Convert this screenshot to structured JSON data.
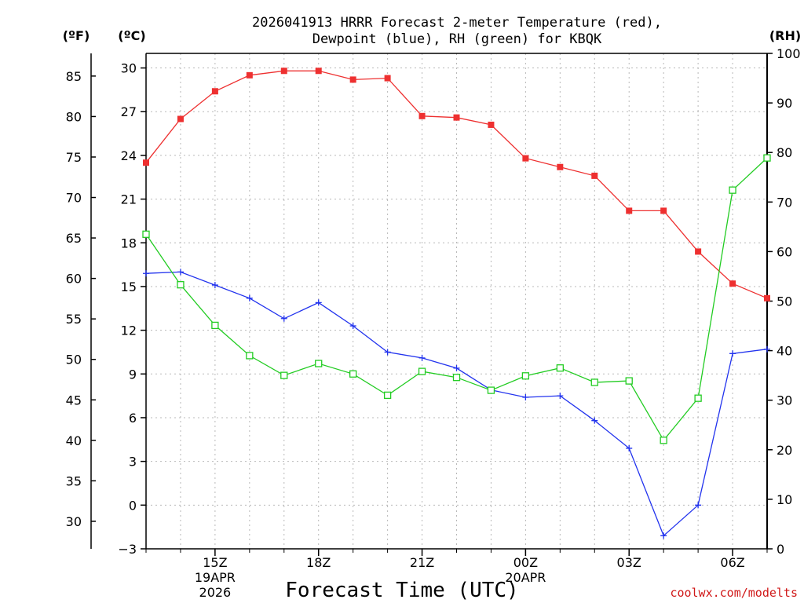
{
  "chart_data": {
    "type": "line",
    "title_line1": "2026041913 HRRR Forecast 2-meter Temperature (red),",
    "title_line2": "Dewpoint (blue), RH (green) for KBQK",
    "xlabel": "Forecast Time (UTC)",
    "credit": "coolwx.com/modelts",
    "axis_units": {
      "fahrenheit": "(ºF)",
      "celsius": "(ºC)",
      "rh": "(RH)"
    },
    "x_hours": [
      13,
      14,
      15,
      16,
      17,
      18,
      19,
      20,
      21,
      22,
      23,
      24,
      25,
      26,
      27,
      28,
      29,
      30,
      31
    ],
    "xlim": [
      13,
      31
    ],
    "celsius_ylim": [
      -3,
      31
    ],
    "fahrenheit_ylim": [
      26.6,
      87.8
    ],
    "rh_ylim": [
      0,
      100
    ],
    "x_ticks": [
      {
        "hour": 15,
        "label": "15Z",
        "date": "19APR",
        "year": "2026"
      },
      {
        "hour": 18,
        "label": "18Z"
      },
      {
        "hour": 21,
        "label": "21Z"
      },
      {
        "hour": 24,
        "label": "00Z",
        "date": "20APR"
      },
      {
        "hour": 27,
        "label": "03Z"
      },
      {
        "hour": 30,
        "label": "06Z"
      }
    ],
    "celsius_ticks": [
      "30",
      "27",
      "24",
      "21",
      "18",
      "15",
      "12",
      "9",
      "6",
      "3",
      "0",
      "−3"
    ],
    "fahrenheit_ticks": [
      "85",
      "80",
      "75",
      "70",
      "65",
      "60",
      "55",
      "50",
      "45",
      "40",
      "35",
      "30"
    ],
    "rh_ticks": [
      "100",
      "90",
      "80",
      "70",
      "60",
      "50",
      "40",
      "30",
      "20",
      "10",
      "0"
    ],
    "series": [
      {
        "name": "Temperature",
        "units": "°C",
        "color": "#ee3030",
        "marker": "filled-square",
        "values": [
          23.5,
          26.5,
          28.4,
          29.5,
          29.8,
          29.8,
          29.2,
          29.3,
          26.7,
          26.6,
          26.1,
          23.8,
          23.2,
          22.6,
          20.2,
          20.2,
          17.4,
          15.2,
          14.2
        ]
      },
      {
        "name": "Dewpoint",
        "units": "°C",
        "color": "#2233ee",
        "marker": "plus",
        "values": [
          15.9,
          16.0,
          15.1,
          14.2,
          12.8,
          13.9,
          12.3,
          10.5,
          10.1,
          9.4,
          7.9,
          7.4,
          7.5,
          5.8,
          3.9,
          -2.1,
          0.0,
          10.4,
          10.7
        ]
      },
      {
        "name": "RH",
        "units": "%",
        "color": "#22cc22",
        "marker": "open-square",
        "values": [
          63.5,
          53.3,
          45.1,
          39.0,
          35.0,
          37.4,
          35.3,
          31.0,
          35.8,
          34.6,
          32.0,
          34.9,
          36.5,
          33.6,
          33.9,
          21.9,
          30.4,
          72.4,
          78.9
        ]
      }
    ]
  }
}
